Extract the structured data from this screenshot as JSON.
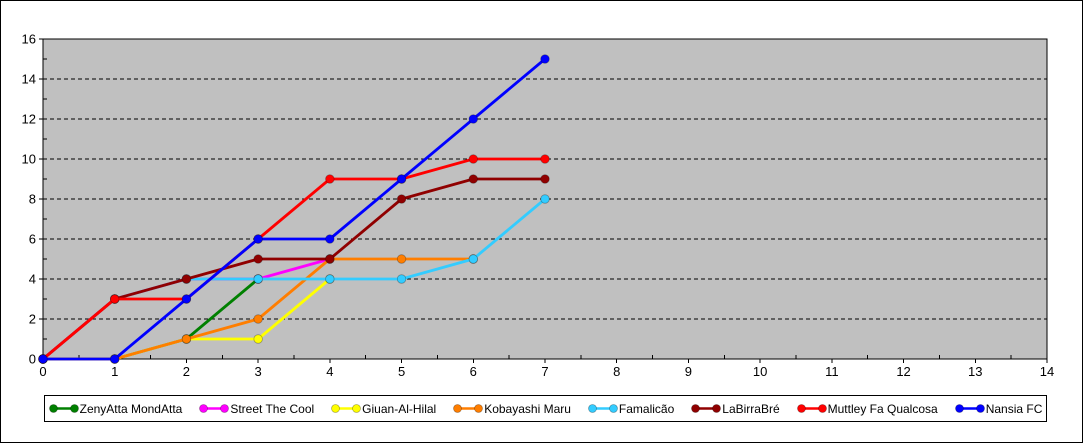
{
  "chart_data": {
    "type": "line",
    "title": "",
    "xlabel": "",
    "ylabel": "",
    "xlim": [
      0,
      14
    ],
    "ylim": [
      0,
      16
    ],
    "x_ticks": [
      0,
      1,
      2,
      3,
      4,
      5,
      6,
      7,
      8,
      9,
      10,
      11,
      12,
      13,
      14
    ],
    "y_ticks": [
      0,
      2,
      4,
      6,
      8,
      10,
      12,
      14,
      16
    ],
    "grid": "horizontal-dashed-at-even-values",
    "legend_position": "bottom",
    "plot_background": "#C0C0C0",
    "outer_background": "#FFFFFF",
    "grid_color": "#000000",
    "axis_color": "#000000",
    "x": [
      0,
      1,
      2,
      3,
      4,
      5,
      6,
      7
    ],
    "series": [
      {
        "name": "ZenyAtta MondAtta",
        "slug": "zenyatta-mondatta",
        "color": "#008000",
        "values": [
          0,
          0,
          1,
          4
        ]
      },
      {
        "name": "Street The Cool",
        "slug": "street-the-cool",
        "color": "#FF00FF",
        "values": [
          0,
          3,
          4,
          4,
          5
        ]
      },
      {
        "name": "Giuan-Al-Hilal",
        "slug": "giuan-al-hilal",
        "color": "#FFFF00",
        "values": [
          0,
          0,
          1,
          1,
          4
        ]
      },
      {
        "name": "Kobayashi Maru",
        "slug": "kobayashi-maru",
        "color": "#FF7E00",
        "values": [
          0,
          0,
          1,
          2,
          5,
          5,
          5
        ]
      },
      {
        "name": "Famalicão",
        "slug": "famalicao",
        "color": "#33CCFF",
        "values": [
          0,
          3,
          4,
          4,
          4,
          4,
          5,
          8
        ]
      },
      {
        "name": "LaBirraBré",
        "slug": "labirrabre",
        "color": "#900000",
        "values": [
          0,
          3,
          4,
          5,
          5,
          8,
          9,
          9
        ]
      },
      {
        "name": "Muttley Fa Qualcosa",
        "slug": "muttley-fa-qualcosa",
        "color": "#FF0000",
        "values": [
          0,
          3,
          3,
          6,
          9,
          9,
          10,
          10
        ]
      },
      {
        "name": "Nansia FC",
        "slug": "nansia-fc",
        "color": "#0000FF",
        "values": [
          0,
          0,
          3,
          6,
          6,
          9,
          12,
          15
        ]
      }
    ]
  }
}
